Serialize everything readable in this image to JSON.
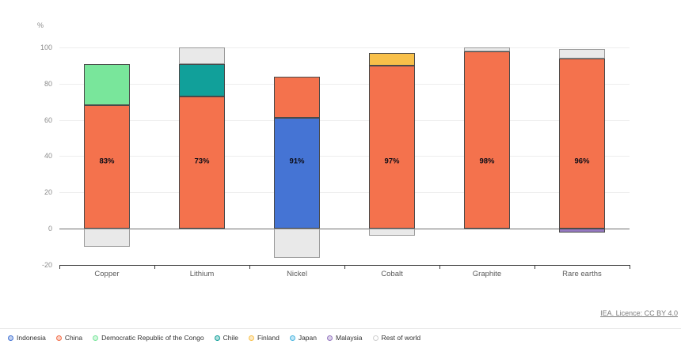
{
  "chart_data": {
    "type": "bar",
    "stacked": true,
    "title": "",
    "ylabel": "%",
    "xlabel": "",
    "ylim": [
      -20,
      100
    ],
    "y_ticks": [
      -20,
      0,
      20,
      40,
      60,
      80,
      100
    ],
    "grid": true,
    "legend_position": "bottom",
    "categories": [
      "Copper",
      "Lithium",
      "Nickel",
      "Cobalt",
      "Graphite",
      "Rare earths"
    ],
    "series": [
      {
        "name": "Indonesia",
        "color": "#4574d4",
        "values": [
          0,
          0,
          61,
          0,
          0,
          0
        ]
      },
      {
        "name": "China",
        "color": "#f4724d",
        "values": [
          68,
          73,
          23,
          90,
          98,
          94
        ]
      },
      {
        "name": "Democratic Republic of the Congo",
        "color": "#79e69b",
        "values": [
          23,
          0,
          0,
          0,
          0,
          0
        ]
      },
      {
        "name": "Chile",
        "color": "#11a09a",
        "values": [
          0,
          18,
          0,
          0,
          0,
          0
        ]
      },
      {
        "name": "Finland",
        "color": "#f8c04a",
        "values": [
          0,
          0,
          0,
          7,
          0,
          0
        ]
      },
      {
        "name": "Japan",
        "color": "#49b5e0",
        "values": [
          0,
          0,
          0,
          0,
          0,
          0
        ]
      },
      {
        "name": "Malaysia",
        "color": "#9679c1",
        "values": [
          0,
          0,
          0,
          0,
          0,
          -2
        ]
      },
      {
        "name": "Rest of world",
        "color": "#e9e9e9",
        "values": [
          -10,
          9,
          -16,
          -4,
          2,
          5
        ]
      }
    ],
    "annotations": [
      "83%",
      "73%",
      "91%",
      "97%",
      "98%",
      "96%"
    ],
    "annotation_y_value": 37
  },
  "legend": {
    "items": [
      {
        "label": "Indonesia",
        "color": "#4574d4"
      },
      {
        "label": "China",
        "color": "#f4724d"
      },
      {
        "label": "Democratic Republic of the Congo",
        "color": "#79e69b"
      },
      {
        "label": "Chile",
        "color": "#11a09a"
      },
      {
        "label": "Finland",
        "color": "#f8c04a"
      },
      {
        "label": "Japan",
        "color": "#49b5e0"
      },
      {
        "label": "Malaysia",
        "color": "#9679c1"
      },
      {
        "label": "Rest of world",
        "color": "#cfcfcf"
      }
    ]
  },
  "footer": {
    "licence_text": "IEA. Licence: CC BY 4.0"
  }
}
